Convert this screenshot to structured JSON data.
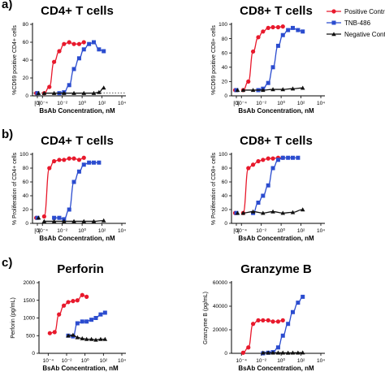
{
  "legend": [
    {
      "name": "Positive Control",
      "color": "#e8192c",
      "marker": "circle"
    },
    {
      "name": "TNB-486",
      "color": "#2b4ccf",
      "marker": "square"
    },
    {
      "name": "Negative Control",
      "color": "#111111",
      "marker": "triangle"
    }
  ],
  "chart_data": [
    {
      "type": "scatter",
      "panel_label": "a)",
      "title": "CD4+ T cells",
      "xlabel": "BsAb Concentration, nM",
      "ylabel": "%CD69 positive CD4+ cells",
      "x_scale": "log",
      "xlim": [
        1e-05,
        10000.0
      ],
      "ylim": [
        0,
        80
      ],
      "yticks": [
        "0",
        "20",
        "40",
        "60",
        "80"
      ],
      "xticks": [
        "[0]",
        "10⁻⁴",
        "10⁻²",
        "10⁰",
        "10²",
        "10⁴"
      ],
      "baseline": 3,
      "series": [
        {
          "name": "Positive Control",
          "x": [
            0.00015,
            0.0005,
            0.0015,
            0.005,
            0.015,
            0.05,
            0.15,
            0.5,
            1.5
          ],
          "y": [
            3,
            10,
            38,
            50,
            58,
            60,
            58,
            58,
            60
          ]
        },
        {
          "name": "TNB-486",
          "x": [
            0.005,
            0.015,
            0.05,
            0.15,
            0.5,
            1.5,
            5,
            15,
            50,
            150
          ],
          "y": [
            3,
            4,
            12,
            30,
            42,
            52,
            58,
            60,
            52,
            50
          ]
        },
        {
          "name": "Negative Control",
          "x": [
            0.00015,
            0.0015,
            0.015,
            0.15,
            1.5,
            15,
            50,
            150
          ],
          "y": [
            3,
            3,
            3,
            3,
            3,
            3,
            4,
            9
          ]
        }
      ]
    },
    {
      "type": "scatter",
      "title": "CD8+ T cells",
      "xlabel": "BsAb Concentration, nM",
      "ylabel": "%CD69 positive CD8+ cells",
      "x_scale": "log",
      "xlim": [
        1e-05,
        10000.0
      ],
      "ylim": [
        0,
        100
      ],
      "yticks": [
        "0",
        "20",
        "40",
        "60",
        "80",
        "100"
      ],
      "xticks": [
        "[0]",
        "10⁻⁴",
        "10⁻²",
        "10⁰",
        "10²",
        "10⁴"
      ],
      "baseline": 8,
      "series": [
        {
          "name": "Positive Control",
          "x": [
            0.00015,
            0.0005,
            0.0015,
            0.005,
            0.015,
            0.05,
            0.15,
            0.5,
            1.5
          ],
          "y": [
            8,
            20,
            62,
            82,
            90,
            95,
            96,
            96,
            97
          ]
        },
        {
          "name": "TNB-486",
          "x": [
            0.005,
            0.015,
            0.05,
            0.15,
            0.5,
            1.5,
            5,
            15,
            50,
            150
          ],
          "y": [
            8,
            10,
            18,
            40,
            70,
            85,
            92,
            95,
            92,
            90
          ]
        },
        {
          "name": "Negative Control",
          "x": [
            0.00015,
            0.0015,
            0.015,
            0.15,
            1.5,
            15,
            150
          ],
          "y": [
            8,
            8,
            8,
            9,
            9,
            10,
            11
          ]
        }
      ]
    },
    {
      "type": "scatter",
      "panel_label": "b)",
      "title": "CD4+ T cells",
      "xlabel": "BsAb Concentration, nM",
      "ylabel": "% Proliferation of CD4+ cells",
      "x_scale": "log",
      "xlim": [
        1e-05,
        10000.0
      ],
      "ylim": [
        0,
        100
      ],
      "yticks": [
        "0",
        "20",
        "40",
        "60",
        "80",
        "100"
      ],
      "xticks": [
        "[0]",
        "10⁻⁴",
        "10⁻²",
        "10⁰",
        "10²",
        "10⁴"
      ],
      "baseline": 8,
      "series": [
        {
          "name": "Positive Control",
          "x": [
            0.00015,
            0.0005,
            0.0015,
            0.005,
            0.015,
            0.05,
            0.15,
            0.5,
            1.5
          ],
          "y": [
            10,
            80,
            90,
            92,
            92,
            94,
            94,
            92,
            95
          ]
        },
        {
          "name": "TNB-486",
          "x": [
            0.0015,
            0.005,
            0.015,
            0.05,
            0.15,
            0.5,
            1.5,
            5,
            15,
            50
          ],
          "y": [
            8,
            8,
            6,
            20,
            60,
            75,
            85,
            88,
            88,
            88
          ]
        },
        {
          "name": "Negative Control",
          "x": [
            0.00015,
            0.0015,
            0.015,
            0.15,
            1.5,
            15,
            150
          ],
          "y": [
            3,
            3,
            3,
            3,
            3,
            3,
            4
          ]
        }
      ]
    },
    {
      "type": "scatter",
      "title": "CD8+ T cells",
      "xlabel": "BsAb Concentration, nM",
      "ylabel": "% Proliferation of CD8+ cells",
      "x_scale": "log",
      "xlim": [
        1e-05,
        10000.0
      ],
      "ylim": [
        0,
        100
      ],
      "yticks": [
        "0",
        "20",
        "40",
        "60",
        "80",
        "100"
      ],
      "xticks": [
        "[0]",
        "10⁻⁴",
        "10⁻²",
        "10⁰",
        "10²",
        "10⁴"
      ],
      "baseline": 15,
      "series": [
        {
          "name": "Positive Control",
          "x": [
            0.00015,
            0.0005,
            0.0015,
            0.005,
            0.015,
            0.05,
            0.15,
            0.5,
            1.5
          ],
          "y": [
            15,
            80,
            85,
            90,
            92,
            94,
            94,
            95,
            95
          ]
        },
        {
          "name": "TNB-486",
          "x": [
            0.0015,
            0.005,
            0.015,
            0.05,
            0.15,
            0.5,
            1.5,
            5,
            15,
            50
          ],
          "y": [
            15,
            30,
            40,
            55,
            80,
            92,
            95,
            95,
            95,
            95
          ]
        },
        {
          "name": "Negative Control",
          "x": [
            0.00015,
            0.0015,
            0.015,
            0.15,
            1.5,
            15,
            150
          ],
          "y": [
            15,
            17,
            15,
            17,
            15,
            16,
            20
          ]
        }
      ]
    },
    {
      "type": "scatter",
      "panel_label": "c)",
      "title": "Perforin",
      "xlabel": "BsAb Concentration, nM",
      "ylabel": "Perforin (pg/mL)",
      "x_scale": "log",
      "xlim": [
        1e-05,
        10000.0
      ],
      "ylim": [
        0,
        2000
      ],
      "yticks": [
        "0",
        "500",
        "1000",
        "1500",
        "2000"
      ],
      "xticks": [
        "10⁻⁴",
        "10⁻²",
        "10⁰",
        "10²",
        "10⁴"
      ],
      "series": [
        {
          "name": "Positive Control",
          "x": [
            0.00015,
            0.0005,
            0.0015,
            0.005,
            0.015,
            0.05,
            0.15,
            0.5,
            1.5
          ],
          "y": [
            570,
            600,
            1100,
            1350,
            1450,
            1480,
            1500,
            1650,
            1600
          ]
        },
        {
          "name": "TNB-486",
          "x": [
            0.015,
            0.05,
            0.15,
            0.5,
            1.5,
            5,
            15,
            50,
            150
          ],
          "y": [
            500,
            480,
            850,
            900,
            900,
            950,
            1000,
            1100,
            1150
          ]
        },
        {
          "name": "Negative Control",
          "x": [
            0.015,
            0.05,
            0.15,
            0.5,
            1.5,
            5,
            15,
            50,
            150
          ],
          "y": [
            500,
            520,
            450,
            420,
            400,
            400,
            380,
            400,
            400
          ]
        }
      ]
    },
    {
      "type": "scatter",
      "title": "Granzyme B",
      "xlabel": "BsAb Concentration, nM",
      "ylabel": "Granzyme B (pg/mL)",
      "x_scale": "log",
      "xlim": [
        1e-05,
        10000.0
      ],
      "ylim": [
        0,
        60000
      ],
      "yticks": [
        "0",
        "20000",
        "40000",
        "60000"
      ],
      "xticks": [
        "10⁻⁴",
        "10⁻²",
        "10⁰",
        "10²",
        "10⁴"
      ],
      "series": [
        {
          "name": "Positive Control",
          "x": [
            0.00015,
            0.0005,
            0.0015,
            0.005,
            0.015,
            0.05,
            0.15,
            0.5,
            1.5
          ],
          "y": [
            500,
            5000,
            25000,
            28000,
            28000,
            28000,
            27000,
            27000,
            28000
          ]
        },
        {
          "name": "TNB-486",
          "x": [
            0.015,
            0.05,
            0.15,
            0.5,
            1.5,
            5,
            15,
            50,
            150
          ],
          "y": [
            0,
            500,
            1000,
            5000,
            15000,
            25000,
            35000,
            43000,
            48000
          ]
        },
        {
          "name": "Negative Control",
          "x": [
            0.015,
            0.05,
            0.15,
            0.5,
            1.5,
            5,
            15,
            50,
            150
          ],
          "y": [
            500,
            500,
            500,
            500,
            500,
            400,
            500,
            500,
            600
          ]
        }
      ]
    }
  ]
}
